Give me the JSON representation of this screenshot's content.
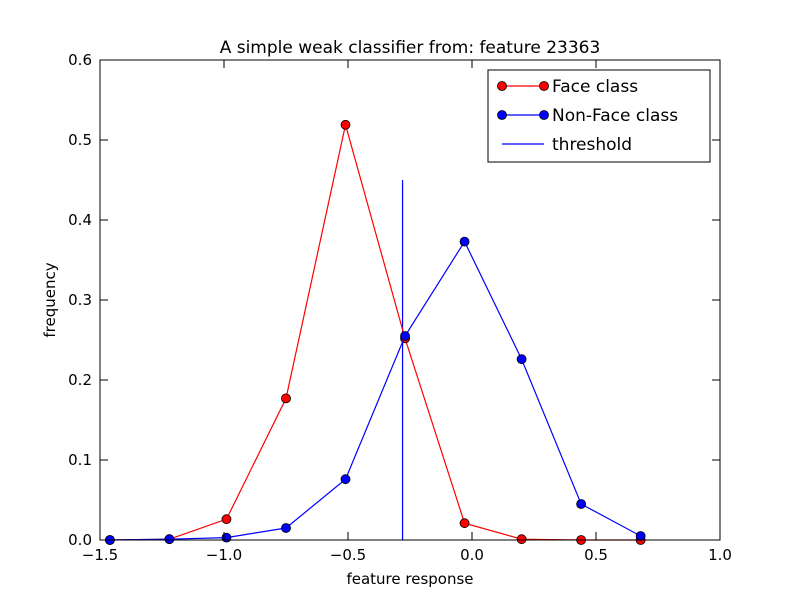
{
  "chart_data": {
    "type": "line",
    "title": "A simple weak classifier from: feature 23363",
    "xlabel": "feature response",
    "ylabel": "frequency",
    "xlim": [
      -1.5,
      1.0
    ],
    "ylim": [
      0.0,
      0.6
    ],
    "xticks": [
      "−1.5",
      "−1.0",
      "−0.5",
      "0.0",
      "0.5",
      "1.0"
    ],
    "xtick_values": [
      -1.5,
      -1.0,
      -0.5,
      0.0,
      0.5,
      1.0
    ],
    "yticks": [
      "0.0",
      "0.1",
      "0.2",
      "0.3",
      "0.4",
      "0.5",
      "0.6"
    ],
    "ytick_values": [
      0.0,
      0.1,
      0.2,
      0.3,
      0.4,
      0.5,
      0.6
    ],
    "grid": false,
    "legend_position": "top-right",
    "series": [
      {
        "name": "Face class",
        "color": "#ff0000",
        "marker": "circle",
        "x": [
          -1.46,
          -1.22,
          -0.99,
          -0.75,
          -0.51,
          -0.27,
          -0.03,
          0.2,
          0.44,
          0.68
        ],
        "y": [
          0.0,
          0.001,
          0.026,
          0.177,
          0.519,
          0.252,
          0.021,
          0.001,
          0.0,
          0.0
        ]
      },
      {
        "name": "Non-Face class",
        "color": "#0000ff",
        "marker": "circle",
        "x": [
          -1.46,
          -1.22,
          -0.99,
          -0.75,
          -0.51,
          -0.27,
          -0.03,
          0.2,
          0.44,
          0.68
        ],
        "y": [
          0.0,
          0.001,
          0.003,
          0.015,
          0.076,
          0.255,
          0.373,
          0.226,
          0.045,
          0.005
        ]
      }
    ],
    "threshold": {
      "name": "threshold",
      "color": "#0000ff",
      "x": -0.28,
      "y_range": [
        0.0,
        0.45
      ]
    }
  }
}
